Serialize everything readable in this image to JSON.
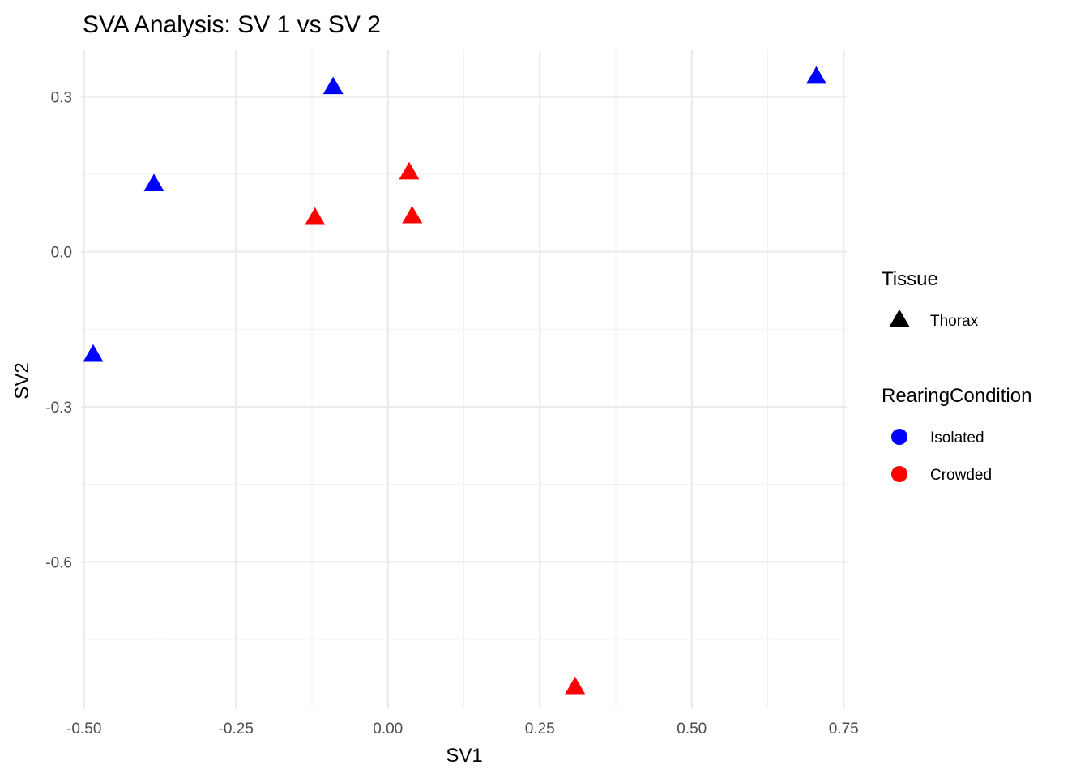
{
  "chart_data": {
    "type": "scatter",
    "title": "SVA Analysis: SV 1  vs SV 2",
    "xlabel": "SV1",
    "ylabel": "SV2",
    "xlim": [
      -0.505,
      0.755
    ],
    "ylim": [
      -0.885,
      0.39
    ],
    "grid": true,
    "x_ticks": [
      -0.5,
      -0.25,
      0.0,
      0.25,
      0.5,
      0.75
    ],
    "x_tick_labels": [
      "-0.50",
      "-0.25",
      "0.00",
      "0.25",
      "0.50",
      "0.75"
    ],
    "y_ticks": [
      -0.6,
      -0.3,
      0.0,
      0.3
    ],
    "y_tick_labels": [
      "-0.6",
      "-0.3",
      "0.0",
      "0.3"
    ],
    "x_minor_ticks": [
      -0.375,
      -0.125,
      0.125,
      0.375,
      0.625
    ],
    "y_minor_ticks": [
      -0.75,
      -0.45,
      -0.15,
      0.15
    ],
    "series": [
      {
        "name": "Isolated",
        "color": "#0000ff",
        "shape": "triangle",
        "points": [
          {
            "x": -0.485,
            "y": -0.2
          },
          {
            "x": -0.385,
            "y": 0.13
          },
          {
            "x": -0.09,
            "y": 0.318
          },
          {
            "x": 0.705,
            "y": 0.338
          }
        ]
      },
      {
        "name": "Crowded",
        "color": "#ff0000",
        "shape": "triangle",
        "points": [
          {
            "x": -0.12,
            "y": 0.065
          },
          {
            "x": 0.035,
            "y": 0.153
          },
          {
            "x": 0.04,
            "y": 0.068
          },
          {
            "x": 0.308,
            "y": -0.843
          }
        ]
      }
    ],
    "legend": {
      "placement": "right",
      "groups": [
        {
          "title": "Tissue",
          "entries": [
            {
              "label": "Thorax",
              "shape": "triangle",
              "color": "#000000"
            }
          ]
        },
        {
          "title": "RearingCondition",
          "entries": [
            {
              "label": "Isolated",
              "shape": "circle",
              "color": "#0000ff"
            },
            {
              "label": "Crowded",
              "shape": "circle",
              "color": "#ff0000"
            }
          ]
        }
      ]
    }
  }
}
